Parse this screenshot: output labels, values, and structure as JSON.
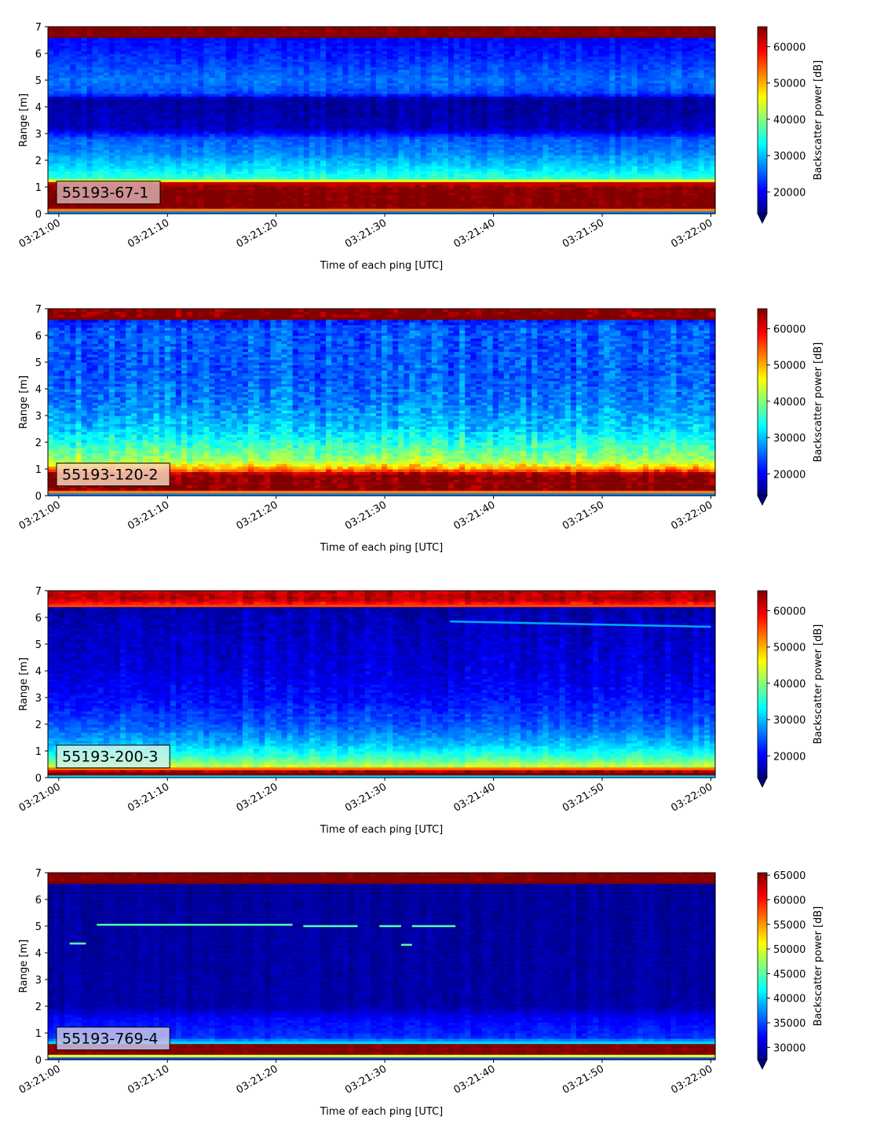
{
  "chart_data": [
    {
      "type": "heatmap",
      "label": "55193-67-1",
      "xlabel": "Time of each ping [UTC]",
      "ylabel": "Range [m]",
      "x_ticks": [
        "03:21:00",
        "03:21:10",
        "03:21:20",
        "03:21:30",
        "03:21:40",
        "03:21:50",
        "03:22:00"
      ],
      "y_ticks": [
        "0",
        "1",
        "2",
        "3",
        "4",
        "5",
        "6",
        "7"
      ],
      "xlim": [
        "03:20:59",
        "03:22:00.4"
      ],
      "ylim": [
        0,
        7
      ],
      "colorbar": {
        "label": "Backscatter power [dB]",
        "min": 14000,
        "max": 65500,
        "ticks": [
          "20000",
          "30000",
          "40000",
          "50000",
          "60000"
        ],
        "extend": "min"
      },
      "label_box_color": "#d8aaaa",
      "profile": [
        [
          0.0,
          14000
        ],
        [
          0.2,
          65500
        ],
        [
          0.9,
          65500
        ],
        [
          1.15,
          62000
        ],
        [
          1.3,
          36000
        ],
        [
          1.8,
          31000
        ],
        [
          2.3,
          27000
        ],
        [
          2.8,
          25000
        ],
        [
          3.2,
          17000
        ],
        [
          4.3,
          15500
        ],
        [
          4.5,
          24000
        ],
        [
          5.0,
          26000
        ],
        [
          5.5,
          24000
        ],
        [
          6.0,
          22000
        ],
        [
          6.6,
          20000
        ],
        [
          6.62,
          65500
        ],
        [
          7.0,
          65500
        ]
      ],
      "noise": 3000
    },
    {
      "type": "heatmap",
      "label": "55193-120-2",
      "xlabel": "Time of each ping [UTC]",
      "ylabel": "Range [m]",
      "x_ticks": [
        "03:21:00",
        "03:21:10",
        "03:21:20",
        "03:21:30",
        "03:21:40",
        "03:21:50",
        "03:22:00"
      ],
      "y_ticks": [
        "0",
        "1",
        "2",
        "3",
        "4",
        "5",
        "6",
        "7"
      ],
      "xlim": [
        "03:20:59",
        "03:22:00.4"
      ],
      "ylim": [
        0,
        7
      ],
      "colorbar": {
        "label": "Backscatter power [dB]",
        "min": 14000,
        "max": 65500,
        "ticks": [
          "20000",
          "30000",
          "40000",
          "50000",
          "60000"
        ],
        "extend": "min"
      },
      "label_box_color": "#f3d2b8",
      "profile": [
        [
          0.0,
          14000
        ],
        [
          0.2,
          65500
        ],
        [
          0.8,
          65500
        ],
        [
          1.0,
          52000
        ],
        [
          1.3,
          42000
        ],
        [
          1.7,
          38000
        ],
        [
          2.5,
          31000
        ],
        [
          3.5,
          27000
        ],
        [
          4.5,
          25000
        ],
        [
          5.5,
          25000
        ],
        [
          6.2,
          25000
        ],
        [
          6.6,
          22000
        ],
        [
          6.62,
          65500
        ],
        [
          7.0,
          65500
        ]
      ],
      "noise": 5500
    },
    {
      "type": "heatmap",
      "label": "55193-200-3",
      "xlabel": "Time of each ping [UTC]",
      "ylabel": "Range [m]",
      "x_ticks": [
        "03:21:00",
        "03:21:10",
        "03:21:20",
        "03:21:30",
        "03:21:40",
        "03:21:50",
        "03:22:00"
      ],
      "y_ticks": [
        "0",
        "1",
        "2",
        "3",
        "4",
        "5",
        "6",
        "7"
      ],
      "xlim": [
        "03:20:59",
        "03:22:00.4"
      ],
      "ylim": [
        0,
        7
      ],
      "colorbar": {
        "label": "Backscatter power [dB]",
        "min": 14000,
        "max": 65500,
        "ticks": [
          "20000",
          "30000",
          "40000",
          "50000",
          "60000"
        ],
        "extend": "min"
      },
      "label_box_color": "#d0f2ea",
      "profile": [
        [
          0.0,
          14000
        ],
        [
          0.15,
          65500
        ],
        [
          0.3,
          62000
        ],
        [
          0.4,
          44000
        ],
        [
          0.8,
          36000
        ],
        [
          1.3,
          30000
        ],
        [
          2.0,
          25000
        ],
        [
          3.0,
          21000
        ],
        [
          4.0,
          19000
        ],
        [
          5.0,
          18000
        ],
        [
          6.0,
          17000
        ],
        [
          6.4,
          16000
        ],
        [
          6.45,
          56000
        ],
        [
          6.7,
          63000
        ],
        [
          7.0,
          62000
        ]
      ],
      "noise": 3500,
      "streaks": [
        {
          "x_from": "03:21:36",
          "x_to": "03:22:00",
          "y_from": 5.85,
          "y_to": 5.65,
          "value": 29000
        }
      ]
    },
    {
      "type": "heatmap",
      "label": "55193-769-4",
      "xlabel": "Time of each ping [UTC]",
      "ylabel": "Range [m]",
      "x_ticks": [
        "03:21:00",
        "03:21:10",
        "03:21:20",
        "03:21:30",
        "03:21:40",
        "03:21:50",
        "03:22:00"
      ],
      "y_ticks": [
        "0",
        "1",
        "2",
        "3",
        "4",
        "5",
        "6",
        "7"
      ],
      "xlim": [
        "03:20:59",
        "03:22:00.4"
      ],
      "ylim": [
        0,
        7
      ],
      "colorbar": {
        "label": "Backscatter power [dB]",
        "min": 27500,
        "max": 65500,
        "ticks": [
          "30000",
          "35000",
          "40000",
          "45000",
          "50000",
          "55000",
          "60000",
          "65000"
        ],
        "extend": "min"
      },
      "label_box_color": "#c7c3ea",
      "profile": [
        [
          0.0,
          27500
        ],
        [
          0.25,
          65500
        ],
        [
          0.6,
          65500
        ],
        [
          0.65,
          40000
        ],
        [
          0.85,
          34000
        ],
        [
          1.6,
          32000
        ],
        [
          2.0,
          29000
        ],
        [
          6.6,
          28500
        ],
        [
          6.62,
          65500
        ],
        [
          7.0,
          65500
        ]
      ],
      "noise": 1500,
      "streaks": [
        {
          "x_from": "03:21:01",
          "x_to": "03:21:02.5",
          "y_from": 4.35,
          "y_to": 4.35,
          "value": 45000
        },
        {
          "x_from": "03:21:03.5",
          "x_to": "03:21:21.5",
          "y_from": 5.05,
          "y_to": 5.05,
          "value": 45000
        },
        {
          "x_from": "03:21:22.5",
          "x_to": "03:21:27.5",
          "y_from": 5.0,
          "y_to": 5.0,
          "value": 45000
        },
        {
          "x_from": "03:21:29.5",
          "x_to": "03:21:31.5",
          "y_from": 5.0,
          "y_to": 5.0,
          "value": 45000
        },
        {
          "x_from": "03:21:31.5",
          "x_to": "03:21:32.5",
          "y_from": 4.3,
          "y_to": 4.3,
          "value": 45000
        },
        {
          "x_from": "03:21:32.5",
          "x_to": "03:21:36.5",
          "y_from": 5.0,
          "y_to": 5.0,
          "value": 45000
        }
      ]
    }
  ]
}
